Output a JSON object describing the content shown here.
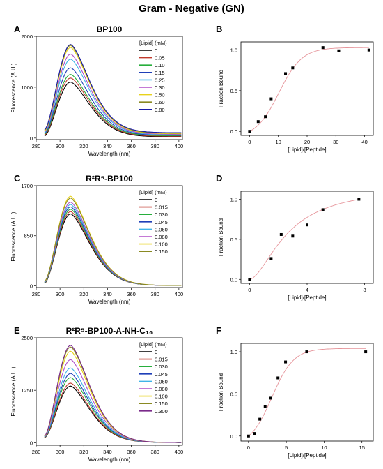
{
  "figure": {
    "title": "Gram - Negative (GN)",
    "panel_letters": [
      "A",
      "B",
      "C",
      "D",
      "E",
      "F"
    ]
  },
  "chart_data": [
    {
      "panel": "A",
      "type": "line",
      "title": "BP100",
      "xlabel": "Wavelength (nm)",
      "ylabel": "Fluorescence (A.U.)",
      "xlim": [
        280,
        403
      ],
      "ylim": [
        -30,
        2000
      ],
      "x_ticks": [
        280,
        300,
        320,
        340,
        360,
        380,
        400
      ],
      "y_ticks": [
        0,
        1000,
        2000
      ],
      "legend_title": "[Lipid] (mM)",
      "legend_position": "top-right",
      "series": [
        {
          "name": "0",
          "color": "#000000",
          "peak": 1100,
          "tail": 25,
          "ends": 40
        },
        {
          "name": "0.05",
          "color": "#c0392b",
          "peak": 1180,
          "tail": 35,
          "ends": 60
        },
        {
          "name": "0.10",
          "color": "#27ae3c",
          "peak": 1250,
          "tail": 45,
          "ends": 75
        },
        {
          "name": "0.15",
          "color": "#1f3fb8",
          "peak": 1380,
          "tail": 55,
          "ends": 90
        },
        {
          "name": "0.25",
          "color": "#3fb4e8",
          "peak": 1550,
          "tail": 65,
          "ends": 105
        },
        {
          "name": "0.30",
          "color": "#b04fc8",
          "peak": 1650,
          "tail": 75,
          "ends": 120
        },
        {
          "name": "0.50",
          "color": "#e8d21c",
          "peak": 1780,
          "tail": 85,
          "ends": 135
        },
        {
          "name": "0.60",
          "color": "#8a8a22",
          "peak": 1820,
          "tail": 95,
          "ends": 150
        },
        {
          "name": "0.80",
          "color": "#1a1aa8",
          "peak": 1840,
          "tail": 105,
          "ends": 165
        }
      ]
    },
    {
      "panel": "B",
      "type": "scatter",
      "title": "",
      "xlabel": "[Lipid]/[Peptide]",
      "ylabel": "Fraction Bound",
      "xlim": [
        -3,
        43
      ],
      "ylim": [
        -0.05,
        1.1
      ],
      "x_ticks": [
        0,
        10,
        20,
        30,
        40
      ],
      "y_ticks": [
        0.0,
        0.5,
        1.0
      ],
      "y_tick_labels": [
        "0.0",
        "0.5",
        "1.0"
      ],
      "points": [
        [
          0,
          0.0
        ],
        [
          3,
          0.12
        ],
        [
          5.5,
          0.18
        ],
        [
          7.5,
          0.4
        ],
        [
          12.5,
          0.71
        ],
        [
          15,
          0.78
        ],
        [
          25.5,
          1.03
        ],
        [
          31,
          0.99
        ],
        [
          41.5,
          1.0
        ]
      ],
      "fit": {
        "kind": "sigmoid",
        "top": 1.03,
        "x0": 10.2,
        "k": 0.25,
        "color": "#e6949a"
      }
    },
    {
      "panel": "C",
      "type": "line",
      "title": "R²R⁵-BP100",
      "xlabel": "Wavelength (nm)",
      "ylabel": "Fluorescence (A.U.)",
      "xlim": [
        280,
        403
      ],
      "ylim": [
        -30,
        1700
      ],
      "x_ticks": [
        280,
        300,
        320,
        340,
        360,
        380,
        400
      ],
      "y_ticks": [
        0,
        850,
        1700
      ],
      "legend_title": "[Lipid] (mM)",
      "legend_position": "top-right",
      "series": [
        {
          "name": "0",
          "color": "#000000",
          "peak": 1220,
          "tail": 5,
          "ends": 40
        },
        {
          "name": "0.015",
          "color": "#c0392b",
          "peak": 1260,
          "tail": 5,
          "ends": 45
        },
        {
          "name": "0.030",
          "color": "#27ae3c",
          "peak": 1300,
          "tail": 5,
          "ends": 50
        },
        {
          "name": "0.045",
          "color": "#1f3fb8",
          "peak": 1340,
          "tail": 5,
          "ends": 55
        },
        {
          "name": "0.060",
          "color": "#3fb4e8",
          "peak": 1380,
          "tail": 5,
          "ends": 60
        },
        {
          "name": "0.080",
          "color": "#b04fc8",
          "peak": 1420,
          "tail": 5,
          "ends": 65
        },
        {
          "name": "0.100",
          "color": "#e8d21c",
          "peak": 1520,
          "tail": 5,
          "ends": 70
        },
        {
          "name": "0.150",
          "color": "#8a8a22",
          "peak": 1490,
          "tail": 5,
          "ends": 75
        }
      ]
    },
    {
      "panel": "D",
      "type": "scatter",
      "title": "",
      "xlabel": "[Lipid]/[Peptide]",
      "ylabel": "Fraction Bound",
      "xlim": [
        -0.6,
        8.6
      ],
      "ylim": [
        -0.05,
        1.1
      ],
      "x_ticks": [
        0,
        4,
        8
      ],
      "y_ticks": [
        0.0,
        0.5,
        1.0
      ],
      "y_tick_labels": [
        "0.0",
        "0.5",
        "1.0"
      ],
      "points": [
        [
          0,
          0.0
        ],
        [
          1.5,
          0.26
        ],
        [
          2.2,
          0.56
        ],
        [
          3.0,
          0.54
        ],
        [
          4.0,
          0.68
        ],
        [
          5.1,
          0.87
        ],
        [
          7.6,
          1.0
        ]
      ],
      "fit": {
        "kind": "hill",
        "top": 1.17,
        "x0": 2.7,
        "n": 1.7,
        "color": "#e6949a"
      }
    },
    {
      "panel": "E",
      "type": "line",
      "title": "R²R⁵-BP100-A-NH-C₁₆",
      "xlabel": "Wavelength (nm)",
      "ylabel": "Fluorescence (A.U.)",
      "xlim": [
        280,
        403
      ],
      "ylim": [
        -60,
        2500
      ],
      "x_ticks": [
        280,
        300,
        320,
        340,
        360,
        380,
        400
      ],
      "y_ticks": [
        0,
        1250,
        2500
      ],
      "legend_title": "[Lipid] (mM)",
      "legend_position": "top-right",
      "series": [
        {
          "name": "0",
          "color": "#000000",
          "peak": 1350,
          "tail": 5,
          "ends": 120
        },
        {
          "name": "0.015",
          "color": "#c0392b",
          "peak": 1420,
          "tail": 5,
          "ends": 125
        },
        {
          "name": "0.030",
          "color": "#27ae3c",
          "peak": 1550,
          "tail": 5,
          "ends": 130
        },
        {
          "name": "0.045",
          "color": "#1f3fb8",
          "peak": 1650,
          "tail": 5,
          "ends": 135
        },
        {
          "name": "0.060",
          "color": "#3fb4e8",
          "peak": 1780,
          "tail": 5,
          "ends": 140
        },
        {
          "name": "0.080",
          "color": "#b04fc8",
          "peak": 1980,
          "tail": 5,
          "ends": 145
        },
        {
          "name": "0.100",
          "color": "#e8d21c",
          "peak": 2180,
          "tail": 5,
          "ends": 150
        },
        {
          "name": "0.150",
          "color": "#8a8a22",
          "peak": 2280,
          "tail": 5,
          "ends": 155
        },
        {
          "name": "0.300",
          "color": "#7a2a8a",
          "peak": 2320,
          "tail": 5,
          "ends": 160
        }
      ]
    },
    {
      "panel": "F",
      "type": "scatter",
      "title": "",
      "xlabel": "[Lipid]/[Peptide]",
      "ylabel": "Fraction Bound",
      "xlim": [
        -1,
        16.5
      ],
      "ylim": [
        -0.06,
        1.1
      ],
      "x_ticks": [
        0,
        5,
        10,
        15
      ],
      "y_ticks": [
        0.0,
        0.5,
        1.0
      ],
      "y_tick_labels": [
        "0.0",
        "0.5",
        "1.0"
      ],
      "points": [
        [
          0,
          0.0
        ],
        [
          0.8,
          0.03
        ],
        [
          1.5,
          0.2
        ],
        [
          2.2,
          0.35
        ],
        [
          2.9,
          0.45
        ],
        [
          3.9,
          0.69
        ],
        [
          4.9,
          0.88
        ],
        [
          7.7,
          1.0
        ],
        [
          15.5,
          1.0
        ]
      ],
      "fit": {
        "kind": "sigmoid",
        "top": 1.04,
        "x0": 3.1,
        "k": 0.7,
        "color": "#e6949a"
      }
    }
  ]
}
